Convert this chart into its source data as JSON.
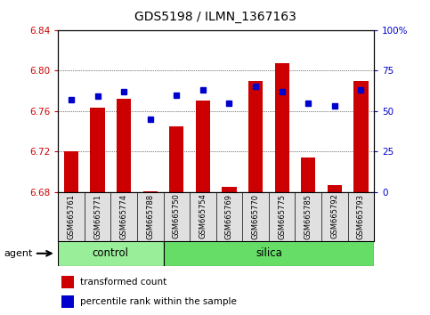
{
  "title": "GDS5198 / ILMN_1367163",
  "samples": [
    "GSM665761",
    "GSM665771",
    "GSM665774",
    "GSM665788",
    "GSM665750",
    "GSM665754",
    "GSM665769",
    "GSM665770",
    "GSM665775",
    "GSM665785",
    "GSM665792",
    "GSM665793"
  ],
  "groups": [
    "control",
    "control",
    "control",
    "control",
    "silica",
    "silica",
    "silica",
    "silica",
    "silica",
    "silica",
    "silica",
    "silica"
  ],
  "red_values": [
    6.72,
    6.763,
    6.772,
    6.681,
    6.745,
    6.77,
    6.685,
    6.79,
    6.807,
    6.714,
    6.687,
    6.79
  ],
  "blue_values_pct": [
    57,
    59,
    62,
    45,
    60,
    63,
    55,
    65,
    62,
    55,
    53,
    63
  ],
  "ymin": 6.68,
  "ymax": 6.84,
  "yticks": [
    6.68,
    6.72,
    6.76,
    6.8,
    6.84
  ],
  "ytick_labels": [
    "6.68",
    "6.72",
    "6.76",
    "6.80",
    "6.84"
  ],
  "right_yticks": [
    0,
    25,
    50,
    75,
    100
  ],
  "right_ytick_labels": [
    "0",
    "25",
    "50",
    "75",
    "100%"
  ],
  "bar_color": "#CC0000",
  "dot_color": "#0000CC",
  "left_color": "#CC0000",
  "right_color": "#0000CC",
  "title_fontsize": 10,
  "tick_fontsize": 7.5,
  "bar_width": 0.55,
  "agent_label": "agent",
  "control_label": "control",
  "silica_label": "silica",
  "control_color": "#99EE99",
  "silica_color": "#66DD66",
  "legend_items": [
    "transformed count",
    "percentile rank within the sample"
  ],
  "n_control": 4,
  "n_silica": 8
}
